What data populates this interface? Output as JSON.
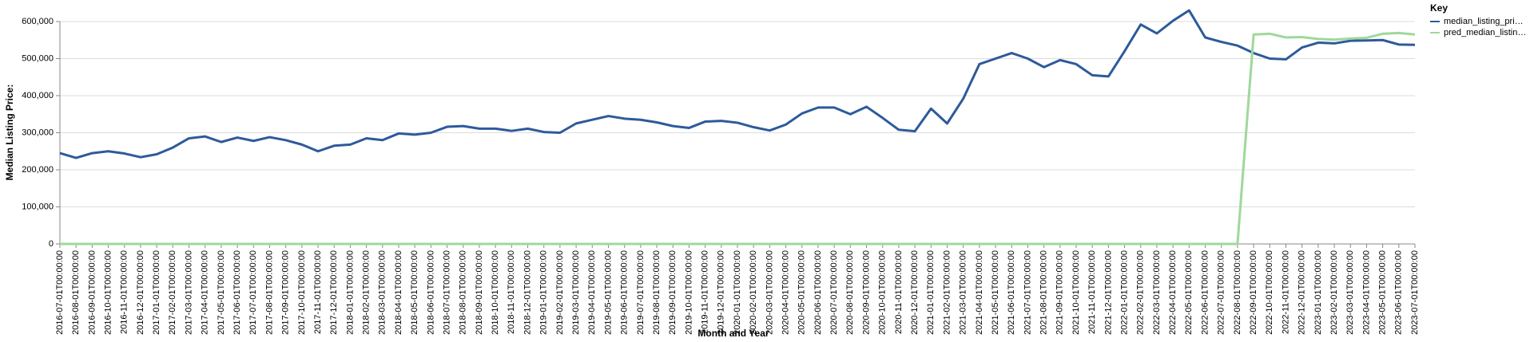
{
  "chart_data": {
    "type": "line",
    "x_label": "Month and Year",
    "y_label": "Median Listing Price:",
    "legend_title": "Key",
    "legend_position": "right",
    "categories": [
      "2016-07-01T00:00:00",
      "2016-08-01T00:00:00",
      "2016-09-01T00:00:00",
      "2016-10-01T00:00:00",
      "2016-11-01T00:00:00",
      "2016-12-01T00:00:00",
      "2017-01-01T00:00:00",
      "2017-02-01T00:00:00",
      "2017-03-01T00:00:00",
      "2017-04-01T00:00:00",
      "2017-05-01T00:00:00",
      "2017-06-01T00:00:00",
      "2017-07-01T00:00:00",
      "2017-08-01T00:00:00",
      "2017-09-01T00:00:00",
      "2017-10-01T00:00:00",
      "2017-11-01T00:00:00",
      "2017-12-01T00:00:00",
      "2018-01-01T00:00:00",
      "2018-02-01T00:00:00",
      "2018-03-01T00:00:00",
      "2018-04-01T00:00:00",
      "2018-05-01T00:00:00",
      "2018-06-01T00:00:00",
      "2018-07-01T00:00:00",
      "2018-08-01T00:00:00",
      "2018-09-01T00:00:00",
      "2018-10-01T00:00:00",
      "2018-11-01T00:00:00",
      "2018-12-01T00:00:00",
      "2019-01-01T00:00:00",
      "2019-02-01T00:00:00",
      "2019-03-01T00:00:00",
      "2019-04-01T00:00:00",
      "2019-05-01T00:00:00",
      "2019-06-01T00:00:00",
      "2019-07-01T00:00:00",
      "2019-08-01T00:00:00",
      "2019-09-01T00:00:00",
      "2019-10-01T00:00:00",
      "2019-11-01T00:00:00",
      "2019-12-01T00:00:00",
      "2020-01-01T00:00:00",
      "2020-02-01T00:00:00",
      "2020-03-01T00:00:00",
      "2020-04-01T00:00:00",
      "2020-05-01T00:00:00",
      "2020-06-01T00:00:00",
      "2020-07-01T00:00:00",
      "2020-08-01T00:00:00",
      "2020-09-01T00:00:00",
      "2020-10-01T00:00:00",
      "2020-11-01T00:00:00",
      "2020-12-01T00:00:00",
      "2021-01-01T00:00:00",
      "2021-02-01T00:00:00",
      "2021-03-01T00:00:00",
      "2021-04-01T00:00:00",
      "2021-05-01T00:00:00",
      "2021-06-01T00:00:00",
      "2021-07-01T00:00:00",
      "2021-08-01T00:00:00",
      "2021-09-01T00:00:00",
      "2021-10-01T00:00:00",
      "2021-11-01T00:00:00",
      "2021-12-01T00:00:00",
      "2022-01-01T00:00:00",
      "2022-02-01T00:00:00",
      "2022-03-01T00:00:00",
      "2022-04-01T00:00:00",
      "2022-05-01T00:00:00",
      "2022-06-01T00:00:00",
      "2022-07-01T00:00:00",
      "2022-08-01T00:00:00",
      "2022-09-01T00:00:00",
      "2022-10-01T00:00:00",
      "2022-11-01T00:00:00",
      "2022-12-01T00:00:00",
      "2023-01-01T00:00:00",
      "2023-02-01T00:00:00",
      "2023-03-01T00:00:00",
      "2023-04-01T00:00:00",
      "2023-05-01T00:00:00",
      "2023-06-01T00:00:00",
      "2023-07-01T00:00:00"
    ],
    "series": [
      {
        "name": "median_listing_pri…",
        "color": "#2d5a9b",
        "values": [
          245000,
          232000,
          245000,
          250000,
          244000,
          234000,
          242000,
          260000,
          285000,
          290000,
          275000,
          287000,
          278000,
          288000,
          280000,
          268000,
          250000,
          265000,
          268000,
          285000,
          280000,
          298000,
          295000,
          300000,
          316000,
          318000,
          311000,
          311000,
          305000,
          311000,
          302000,
          300000,
          325000,
          335000,
          345000,
          338000,
          335000,
          328000,
          318000,
          313000,
          330000,
          332000,
          327000,
          315000,
          306000,
          322000,
          352000,
          368000,
          368000,
          350000,
          370000,
          340000,
          308000,
          304000,
          365000,
          325000,
          392000,
          485000,
          500000,
          515000,
          500000,
          477000,
          496000,
          485000,
          455000,
          452000,
          520000,
          592000,
          568000,
          602000,
          630000,
          557000,
          545000,
          535000,
          515000,
          500000,
          498000,
          530000,
          543000,
          541000,
          548000,
          549000,
          550000,
          538000,
          537000
        ]
      },
      {
        "name": "pred_median_listin…",
        "color": "#9fd89a",
        "values": [
          0,
          0,
          0,
          0,
          0,
          0,
          0,
          0,
          0,
          0,
          0,
          0,
          0,
          0,
          0,
          0,
          0,
          0,
          0,
          0,
          0,
          0,
          0,
          0,
          0,
          0,
          0,
          0,
          0,
          0,
          0,
          0,
          0,
          0,
          0,
          0,
          0,
          0,
          0,
          0,
          0,
          0,
          0,
          0,
          0,
          0,
          0,
          0,
          0,
          0,
          0,
          0,
          0,
          0,
          0,
          0,
          0,
          0,
          0,
          0,
          0,
          0,
          0,
          0,
          0,
          0,
          0,
          0,
          0,
          0,
          0,
          0,
          0,
          0,
          565000,
          567000,
          557000,
          558000,
          553000,
          551000,
          554000,
          556000,
          567000,
          569000,
          565000
        ]
      }
    ],
    "ylim": [
      0,
      600000
    ],
    "yticks": [
      0,
      {
        "value": 100000,
        "label": "100,000"
      },
      {
        "value": 200000,
        "label": "200,000"
      },
      {
        "value": 300000,
        "label": "300,000"
      },
      {
        "value": 400000,
        "label": "400,000"
      },
      {
        "value": 500000,
        "label": "500,000"
      },
      {
        "value": 600000,
        "label": "600,000"
      }
    ],
    "grid": true
  }
}
